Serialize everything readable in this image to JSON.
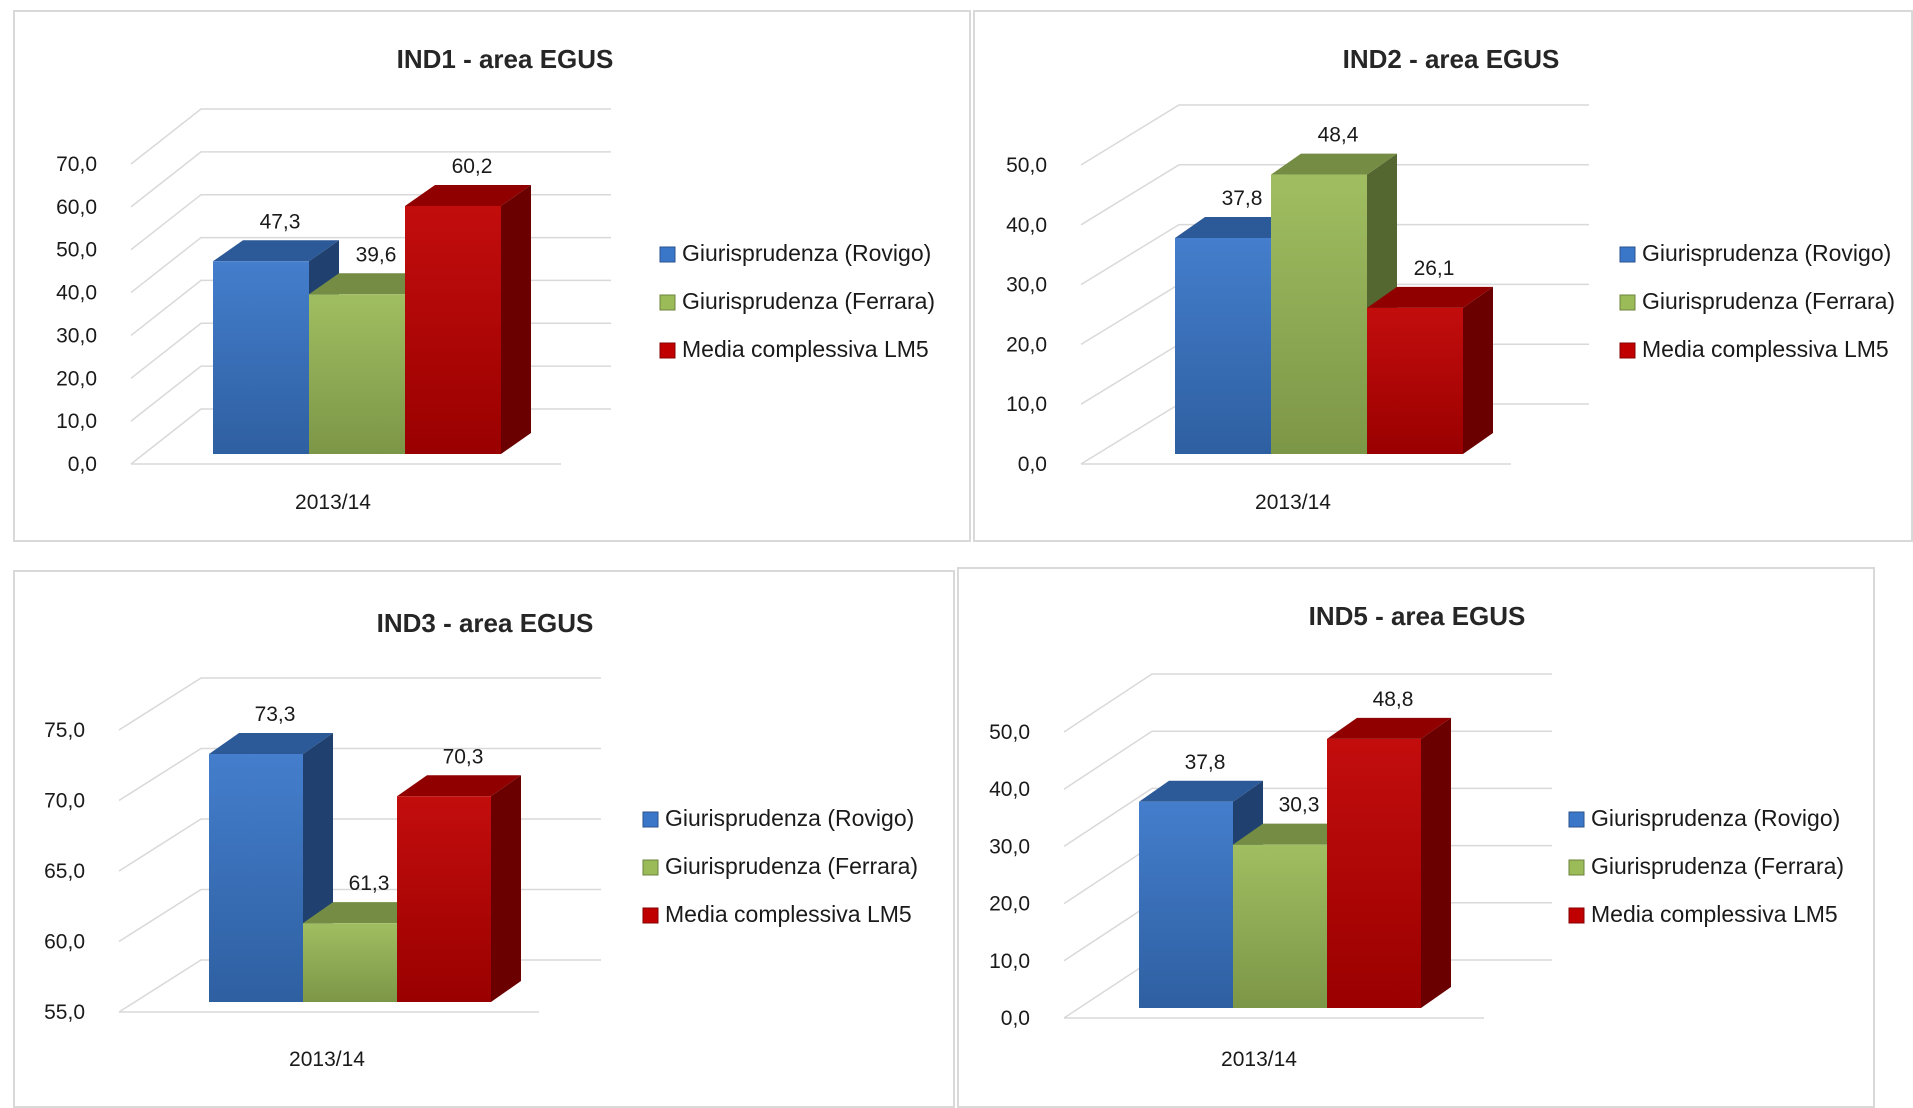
{
  "colors": {
    "rovigo": "#3a77c9",
    "ferrara": "#9bbb59",
    "lm5": "#c00000"
  },
  "chart_data": [
    {
      "type": "bar",
      "title": "IND1 - area EGUS",
      "categories": [
        "2013/14"
      ],
      "ylim": [
        0,
        70
      ],
      "ytick_step": 10,
      "yticks": [
        "0,0",
        "10,0",
        "20,0",
        "30,0",
        "40,0",
        "50,0",
        "60,0",
        "70,0"
      ],
      "series": [
        {
          "name": "Giurisprudenza (Rovigo)",
          "values": [
            47.3
          ],
          "labels": [
            "47,3"
          ]
        },
        {
          "name": "Giurisprudenza (Ferrara)",
          "values": [
            39.6
          ],
          "labels": [
            "39,6"
          ]
        },
        {
          "name": "Media complessiva LM5",
          "values": [
            60.2
          ],
          "labels": [
            "60,2"
          ]
        }
      ],
      "legend": "right",
      "grid": true
    },
    {
      "type": "bar",
      "title": "IND2 - area EGUS",
      "categories": [
        "2013/14"
      ],
      "ylim": [
        0,
        50
      ],
      "ytick_step": 10,
      "yticks": [
        "0,0",
        "10,0",
        "20,0",
        "30,0",
        "40,0",
        "50,0"
      ],
      "series": [
        {
          "name": "Giurisprudenza (Rovigo)",
          "values": [
            37.8
          ],
          "labels": [
            "37,8"
          ]
        },
        {
          "name": "Giurisprudenza (Ferrara)",
          "values": [
            48.4
          ],
          "labels": [
            "48,4"
          ]
        },
        {
          "name": "Media complessiva LM5",
          "values": [
            26.1
          ],
          "labels": [
            "26,1"
          ]
        }
      ],
      "legend": "right",
      "grid": true
    },
    {
      "type": "bar",
      "title": "IND3 - area EGUS",
      "categories": [
        "2013/14"
      ],
      "ylim": [
        55,
        75
      ],
      "ytick_step": 5,
      "yticks": [
        "55,0",
        "60,0",
        "65,0",
        "70,0",
        "75,0"
      ],
      "series": [
        {
          "name": "Giurisprudenza (Rovigo)",
          "values": [
            73.3
          ],
          "labels": [
            "73,3"
          ]
        },
        {
          "name": "Giurisprudenza (Ferrara)",
          "values": [
            61.3
          ],
          "labels": [
            "61,3"
          ]
        },
        {
          "name": "Media complessiva LM5",
          "values": [
            70.3
          ],
          "labels": [
            "70,3"
          ]
        }
      ],
      "legend": "right",
      "grid": true
    },
    {
      "type": "bar",
      "title": "IND5 - area EGUS",
      "categories": [
        "2013/14"
      ],
      "ylim": [
        0,
        50
      ],
      "ytick_step": 10,
      "yticks": [
        "0,0",
        "10,0",
        "20,0",
        "30,0",
        "40,0",
        "50,0"
      ],
      "series": [
        {
          "name": "Giurisprudenza (Rovigo)",
          "values": [
            37.8
          ],
          "labels": [
            "37,8"
          ]
        },
        {
          "name": "Giurisprudenza (Ferrara)",
          "values": [
            30.3
          ],
          "labels": [
            "30,3"
          ]
        },
        {
          "name": "Media complessiva LM5",
          "values": [
            48.8
          ],
          "labels": [
            "48,8"
          ]
        }
      ],
      "legend": "right",
      "grid": true
    }
  ]
}
